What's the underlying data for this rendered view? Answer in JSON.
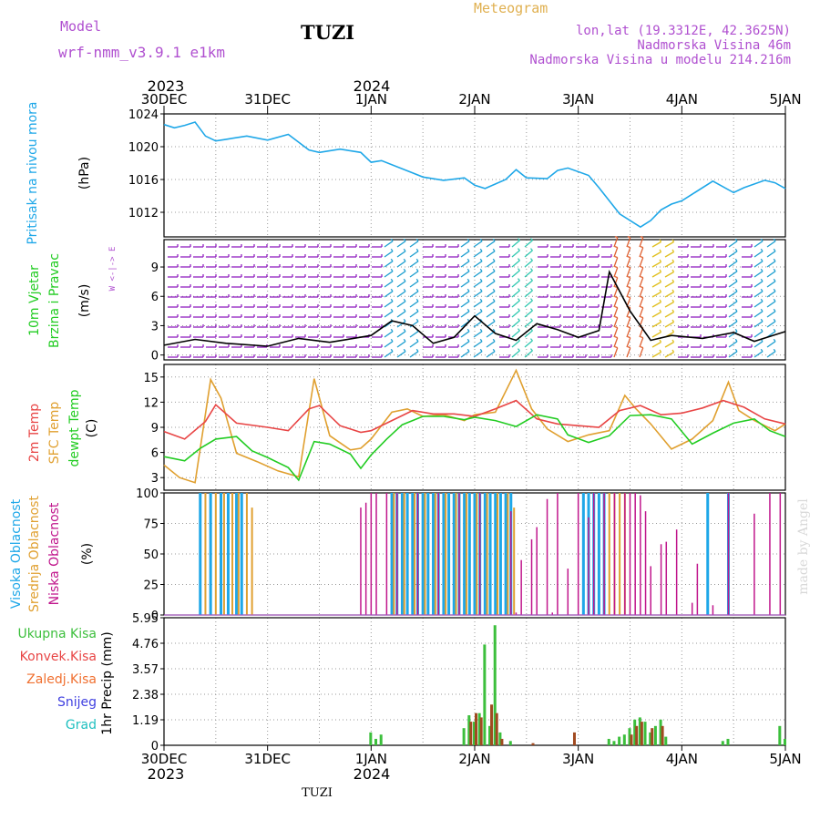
{
  "header": {
    "model_label": "Model",
    "model_name": "wrf-nmm_v3.9.1 e1km",
    "station": "TUZI",
    "meteogram": "Meteogram",
    "lonlat": "lon,lat (19.3312E, 42.3625N)",
    "elevation": "Nadmorska Visina 46m",
    "model_elevation": "Nadmorska Visina u modelu 214.216m",
    "watermark": "made by Angel",
    "footer_station": "TUZI"
  },
  "colors": {
    "pressure": "#1ea7e8",
    "temp2m": "#e84545",
    "sfc": "#e0a030",
    "dew": "#22cc22",
    "high_cloud": "#1ea7e8",
    "mid_cloud": "#e0a030",
    "low_cloud": "#c0168c",
    "total_precip": "#3cbf3c",
    "conv_precip": "#a04a20",
    "model_text": "#b050d0",
    "wind_west": "#9020c0",
    "wind_mid": "#20a0d0"
  },
  "time_axis": {
    "years_top": [
      "2023",
      "2024"
    ],
    "years_bottom": [
      "2023",
      "2024"
    ],
    "labels": [
      "30DEC",
      "31DEC",
      "1JAN",
      "2JAN",
      "3JAN",
      "4JAN",
      "5JAN"
    ]
  },
  "chart_data": [
    {
      "panel": "pressure",
      "type": "line",
      "ylabel_main": "Pritisak na nivou mora",
      "ylabel_unit": "(hPa)",
      "ylim": [
        1009,
        1024
      ],
      "yticks": [
        "1024",
        "1020",
        "1016",
        "1012"
      ],
      "series": [
        {
          "x": [
            0,
            0.1,
            0.2,
            0.3,
            0.4,
            0.5,
            0.6,
            0.8,
            1.0,
            1.2,
            1.4,
            1.5,
            1.7,
            1.9,
            2.0,
            2.1,
            2.3,
            2.4,
            2.5,
            2.7,
            2.9,
            3.0,
            3.1,
            3.3,
            3.4,
            3.5,
            3.7,
            3.8,
            3.9,
            4.1,
            4.2,
            4.4,
            4.6,
            4.7,
            4.8,
            4.9,
            5.0,
            5.1,
            5.3,
            5.5,
            5.6,
            5.8,
            5.9,
            6.0
          ],
          "values": [
            1022.7,
            1022.3,
            1022.6,
            1023.0,
            1021.3,
            1020.7,
            1020.9,
            1021.3,
            1020.8,
            1021.5,
            1019.6,
            1019.3,
            1019.7,
            1019.3,
            1018.1,
            1018.3,
            1017.3,
            1016.8,
            1016.3,
            1015.9,
            1016.2,
            1015.3,
            1014.9,
            1016.0,
            1017.2,
            1016.2,
            1016.1,
            1017.1,
            1017.4,
            1016.5,
            1015.0,
            1011.8,
            1010.2,
            1011.0,
            1012.3,
            1013.0,
            1013.4,
            1014.2,
            1015.8,
            1014.4,
            1015.0,
            1015.9,
            1015.6,
            1014.9
          ]
        }
      ]
    },
    {
      "panel": "wind",
      "type": "line",
      "ylabel_main": "10m Vjetar",
      "ylabel_sub": "Brzina i Pravac",
      "ylabel_unit": "(m/s)",
      "compass": "W <-|-> E",
      "ylim": [
        -0.5,
        11.8
      ],
      "yticks": [
        "9",
        "6",
        "3",
        "0"
      ],
      "series": [
        {
          "x": [
            0,
            0.3,
            0.6,
            1.0,
            1.3,
            1.6,
            2.0,
            2.2,
            2.4,
            2.6,
            2.8,
            3.0,
            3.2,
            3.4,
            3.6,
            3.8,
            4.0,
            4.2,
            4.3,
            4.5,
            4.7,
            4.9,
            5.2,
            5.5,
            5.7,
            6.0
          ],
          "values": [
            1.0,
            1.6,
            1.2,
            0.9,
            1.7,
            1.3,
            2.0,
            3.5,
            3.0,
            1.2,
            1.8,
            4.0,
            2.2,
            1.5,
            3.2,
            2.6,
            1.8,
            2.5,
            8.5,
            4.5,
            1.5,
            2.0,
            1.7,
            2.3,
            1.4,
            2.4
          ]
        }
      ]
    },
    {
      "panel": "temperature",
      "type": "line",
      "ylabel_main": "2m Temp",
      "ylabel_sub": "SFC Temp",
      "ylabel_sub2": "dewpt Temp",
      "ylabel_unit": "(C)",
      "ylim": [
        1.5,
        16.5
      ],
      "yticks": [
        "15",
        "12",
        "9",
        "6",
        "3"
      ],
      "series": [
        {
          "name": "2m Temp",
          "x": [
            0,
            0.2,
            0.4,
            0.5,
            0.7,
            1.0,
            1.2,
            1.4,
            1.5,
            1.7,
            1.9,
            2.0,
            2.2,
            2.4,
            2.6,
            2.8,
            3.0,
            3.2,
            3.4,
            3.6,
            3.8,
            4.0,
            4.2,
            4.4,
            4.6,
            4.8,
            5.0,
            5.2,
            5.4,
            5.6,
            5.8,
            6.0
          ],
          "values": [
            8.5,
            7.6,
            9.7,
            11.7,
            9.5,
            9.0,
            8.6,
            11.2,
            11.6,
            9.2,
            8.4,
            8.6,
            9.8,
            11.0,
            10.6,
            10.6,
            10.3,
            11.2,
            12.2,
            10.0,
            9.4,
            9.2,
            9.0,
            11.0,
            11.6,
            10.5,
            10.7,
            11.3,
            12.2,
            11.4,
            10.0,
            9.4
          ]
        },
        {
          "name": "SFC Temp",
          "x": [
            0,
            0.15,
            0.3,
            0.45,
            0.55,
            0.7,
            0.9,
            1.1,
            1.3,
            1.45,
            1.6,
            1.8,
            1.9,
            2.0,
            2.2,
            2.35,
            2.5,
            2.7,
            2.9,
            3.0,
            3.2,
            3.4,
            3.55,
            3.7,
            3.9,
            4.1,
            4.3,
            4.45,
            4.55,
            4.7,
            4.9,
            5.1,
            5.3,
            5.45,
            5.55,
            5.7,
            5.9,
            6.0
          ],
          "values": [
            4.5,
            3.0,
            2.4,
            14.7,
            12.5,
            5.9,
            4.9,
            3.8,
            3.1,
            14.8,
            8.0,
            6.3,
            6.5,
            7.6,
            10.8,
            11.2,
            10.3,
            10.5,
            9.8,
            10.5,
            10.8,
            15.8,
            11.2,
            8.8,
            7.3,
            8.1,
            8.6,
            12.8,
            11.3,
            9.4,
            6.4,
            7.6,
            9.8,
            14.4,
            11.0,
            9.8,
            8.6,
            9.4
          ]
        },
        {
          "name": "dewpt Temp",
          "x": [
            0,
            0.2,
            0.35,
            0.5,
            0.7,
            0.85,
            1.0,
            1.2,
            1.3,
            1.45,
            1.6,
            1.8,
            1.9,
            2.0,
            2.15,
            2.3,
            2.5,
            2.7,
            2.9,
            3.0,
            3.2,
            3.4,
            3.6,
            3.8,
            3.9,
            4.1,
            4.3,
            4.5,
            4.7,
            4.9,
            5.1,
            5.3,
            5.5,
            5.7,
            5.85,
            6.0
          ],
          "values": [
            5.5,
            5.0,
            6.5,
            7.6,
            7.9,
            6.2,
            5.4,
            4.2,
            2.7,
            7.3,
            7.0,
            5.8,
            4.1,
            5.7,
            7.6,
            9.3,
            10.3,
            10.3,
            9.9,
            10.2,
            9.8,
            9.1,
            10.5,
            10.0,
            8.1,
            7.2,
            8.0,
            10.4,
            10.5,
            10.0,
            7.0,
            8.3,
            9.5,
            10.0,
            8.6,
            7.9
          ]
        }
      ]
    },
    {
      "panel": "cloud",
      "type": "bar",
      "ylabel_high": "Visoka Oblacnost",
      "ylabel_mid": "Srednja Oblacnost",
      "ylabel_low": "Niska Oblacnost",
      "ylabel_unit": "(%)",
      "ylim": [
        0,
        100
      ],
      "yticks": [
        "100",
        "75",
        "50",
        "25",
        "0"
      ],
      "series": [
        {
          "name": "Visoka Oblacnost",
          "x": [
            0.35,
            0.45,
            0.55,
            0.62,
            0.7,
            0.75,
            2.2,
            2.25,
            2.3,
            2.35,
            2.4,
            2.45,
            2.5,
            2.55,
            2.6,
            2.65,
            2.7,
            2.75,
            2.8,
            2.85,
            2.9,
            2.95,
            3.0,
            3.05,
            3.1,
            3.15,
            3.2,
            3.25,
            3.3,
            3.35,
            4.05,
            4.1,
            4.15,
            4.2,
            4.25,
            5.25,
            5.45
          ],
          "values": [
            100,
            100,
            100,
            100,
            100,
            100,
            100,
            100,
            100,
            100,
            100,
            100,
            100,
            100,
            100,
            100,
            100,
            100,
            100,
            100,
            100,
            100,
            100,
            100,
            100,
            100,
            100,
            100,
            100,
            100,
            100,
            100,
            100,
            100,
            100,
            100,
            100
          ]
        },
        {
          "name": "Srednja Oblacnost",
          "x": [
            0.4,
            0.5,
            0.58,
            0.66,
            0.72,
            0.8,
            0.85,
            2.22,
            2.32,
            2.42,
            2.52,
            2.62,
            2.72,
            2.82,
            2.92,
            3.02,
            3.12,
            3.22,
            3.32,
            3.38,
            4.3,
            4.35,
            4.4,
            4.45
          ],
          "values": [
            100,
            100,
            100,
            100,
            100,
            100,
            88,
            100,
            100,
            100,
            100,
            100,
            100,
            100,
            100,
            100,
            100,
            100,
            100,
            88,
            100,
            100,
            100,
            100
          ]
        },
        {
          "name": "Niska Oblacnost",
          "x": [
            1.9,
            1.95,
            2.0,
            2.05,
            2.15,
            2.25,
            2.45,
            2.65,
            2.85,
            3.05,
            3.35,
            3.4,
            3.45,
            3.55,
            3.6,
            3.7,
            3.75,
            3.8,
            3.9,
            4.0,
            4.1,
            4.15,
            4.25,
            4.35,
            4.45,
            4.5,
            4.55,
            4.6,
            4.65,
            4.7,
            4.8,
            4.85,
            4.95,
            5.1,
            5.15,
            5.3,
            5.45,
            5.7,
            5.85,
            5.95
          ],
          "values": [
            88,
            92,
            100,
            100,
            100,
            100,
            100,
            100,
            100,
            100,
            85,
            2,
            45,
            62,
            72,
            95,
            2,
            100,
            38,
            100,
            80,
            100,
            100,
            100,
            100,
            100,
            100,
            98,
            85,
            40,
            58,
            60,
            70,
            10,
            42,
            8,
            100,
            83,
            100,
            100
          ]
        }
      ]
    },
    {
      "panel": "precip",
      "type": "bar",
      "ylabel": "1hr Precip (mm)",
      "legend": [
        "Ukupna Kisa",
        "Konvek.Kisa",
        "Zaledj.Kisa",
        "Snijeg",
        "Grad"
      ],
      "ylim": [
        0,
        5.95
      ],
      "yticks": [
        "5.95",
        "4.76",
        "3.57",
        "2.38",
        "1.19",
        "0"
      ],
      "series": [
        {
          "name": "Ukupna Kisa",
          "x": [
            2.0,
            2.05,
            2.1,
            2.9,
            2.95,
            3.0,
            3.05,
            3.1,
            3.15,
            3.2,
            3.25,
            3.35,
            4.3,
            4.35,
            4.4,
            4.45,
            4.5,
            4.55,
            4.6,
            4.65,
            4.7,
            4.75,
            4.8,
            4.85,
            5.4,
            5.45,
            5.95,
            6.0
          ],
          "values": [
            0.6,
            0.3,
            0.5,
            0.8,
            1.4,
            1.1,
            1.5,
            4.7,
            0.9,
            5.6,
            0.6,
            0.2,
            0.3,
            0.2,
            0.4,
            0.5,
            0.8,
            1.2,
            1.3,
            1.1,
            0.6,
            0.9,
            1.2,
            0.4,
            0.2,
            0.3,
            0.9,
            0.3
          ]
        },
        {
          "name": "Konvek.Kisa",
          "x": [
            2.95,
            3.0,
            3.05,
            3.15,
            3.2,
            3.25,
            3.55,
            3.95,
            4.5,
            4.55,
            4.6,
            4.7,
            4.8
          ],
          "values": [
            1.1,
            1.5,
            1.3,
            1.9,
            1.5,
            0.3,
            0.1,
            0.6,
            0.5,
            0.9,
            1.1,
            0.8,
            0.9
          ]
        },
        {
          "name": "Zaledj.Kisa",
          "x": [],
          "values": []
        },
        {
          "name": "Snijeg",
          "x": [],
          "values": []
        },
        {
          "name": "Grad",
          "x": [],
          "values": []
        }
      ]
    }
  ]
}
